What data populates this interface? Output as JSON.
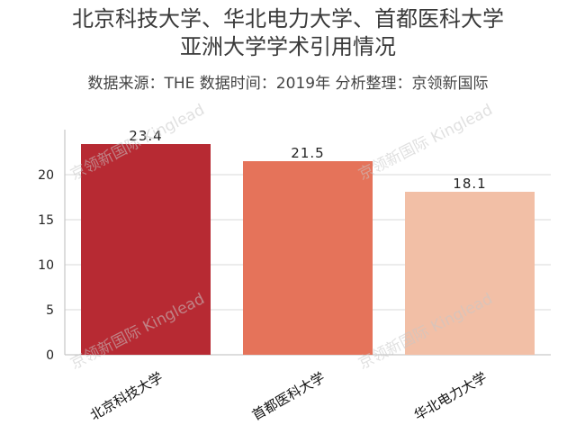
{
  "chart_data": {
    "type": "bar",
    "title": "北京科技大学、华北电力大学、首都医科大学",
    "title_line2": "亚洲大学学术引用情况",
    "subtitle": "数据来源：THE 数据时间：2019年 分析整理：京领新国际",
    "categories": [
      "北京科技大学",
      "首都医科大学",
      "华北电力大学"
    ],
    "values": [
      23.4,
      21.5,
      18.1
    ],
    "value_labels": [
      "23.4",
      "21.5",
      "18.1"
    ],
    "colors": [
      "#b72a33",
      "#e5735a",
      "#f2bfa6"
    ],
    "ylim": [
      0,
      25
    ],
    "yticks": [
      "0",
      "5",
      "10",
      "15",
      "20"
    ],
    "grid": true,
    "watermark": "京领新国际 Kinglead"
  }
}
